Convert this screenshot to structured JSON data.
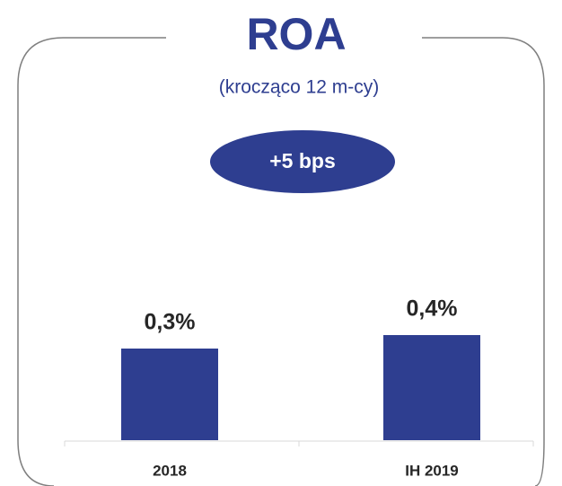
{
  "chart_data": {
    "type": "bar",
    "title": "ROA",
    "subtitle": "(krocząco 12 m-cy)",
    "annotation": "+5 bps",
    "categories": [
      "2018",
      "IH 2019"
    ],
    "values": [
      0.34,
      0.39
    ],
    "value_labels": [
      "0,3%",
      "0,4%"
    ],
    "color": "#2e3e90"
  }
}
